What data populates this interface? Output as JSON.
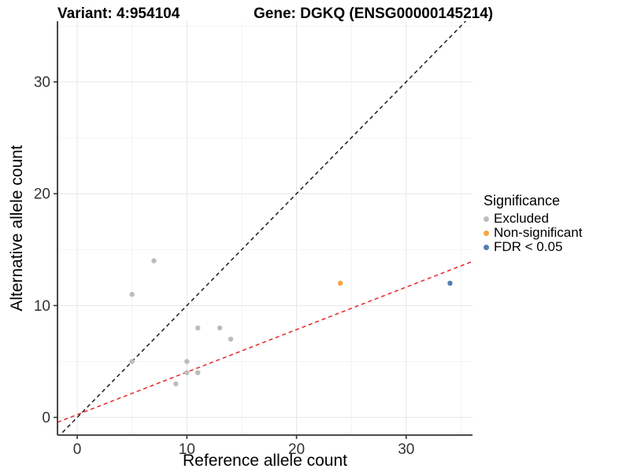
{
  "header": {
    "variant_title": "Variant: 4:954104",
    "gene_title": "Gene: DGKQ (ENSG00000145214)"
  },
  "chart_data": {
    "type": "scatter",
    "title": "Variant: 4:954104   Gene: DGKQ (ENSG00000145214)",
    "xlabel": "Reference allele count",
    "ylabel": "Alternative allele count",
    "xlim": [
      -1.8,
      36.05
    ],
    "ylim": [
      -1.58,
      35.42
    ],
    "x_ticks": [
      0,
      10,
      20,
      30
    ],
    "y_ticks": [
      0,
      10,
      20,
      30
    ],
    "x_minor_ticks": [
      5,
      15,
      25,
      35
    ],
    "y_minor_ticks": [
      5,
      15,
      25,
      35
    ],
    "grid": "major+minor",
    "legend": {
      "title": "Significance",
      "position": "right",
      "entries": [
        {
          "label": "Excluded",
          "color": "#BCBCBC"
        },
        {
          "label": "Non-significant",
          "color": "#F9A440"
        },
        {
          "label": "FDR < 0.05",
          "color": "#4E80AE"
        }
      ]
    },
    "series": [
      {
        "name": "Excluded",
        "color": "#BCBCBC",
        "points": [
          [
            5,
            5
          ],
          [
            5,
            11
          ],
          [
            7,
            14
          ],
          [
            9,
            3
          ],
          [
            10,
            4
          ],
          [
            10,
            5
          ],
          [
            11,
            4
          ],
          [
            11,
            8
          ],
          [
            13,
            8
          ],
          [
            14,
            7
          ]
        ]
      },
      {
        "name": "Non-significant",
        "color": "#F9A440",
        "points": [
          [
            24,
            12
          ]
        ]
      },
      {
        "name": "FDR < 0.05",
        "color": "#4E80AE",
        "points": [
          [
            34,
            12
          ]
        ]
      }
    ],
    "lines": [
      {
        "name": "identity-line",
        "color": "#1C1C1C",
        "dash": "5,4",
        "slope": 1,
        "intercept": 0
      },
      {
        "name": "expected-ratio-line",
        "color": "#E8242A",
        "dash": "5,4",
        "slope": 0.38,
        "intercept": 0.25
      }
    ],
    "colors": {
      "grid_major": "#E6E6E6",
      "grid_minor": "#F3F3F3",
      "axis_line": "#333333",
      "tick_text": "#333333"
    }
  }
}
